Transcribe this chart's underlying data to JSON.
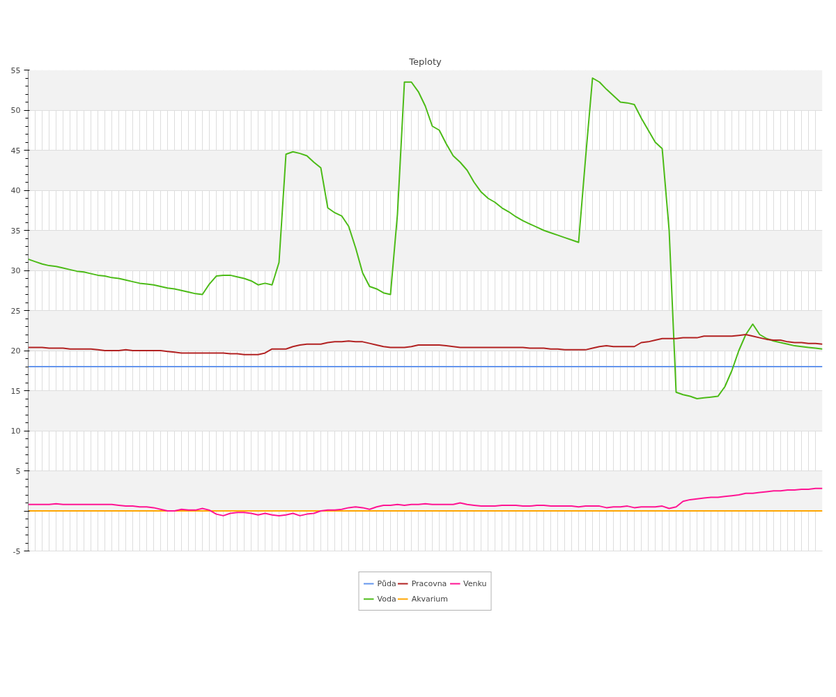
{
  "chart_data": {
    "type": "line",
    "title": "Teploty",
    "categories": [
      null,
      null,
      null,
      null,
      null,
      null,
      null,
      null,
      null,
      null,
      null,
      null,
      null,
      null,
      null,
      null,
      null,
      null,
      null,
      null,
      null,
      null,
      null,
      null,
      null,
      null,
      null,
      null,
      null,
      null,
      null,
      null,
      null,
      null,
      null,
      null,
      null,
      null,
      null,
      null,
      null,
      null,
      null,
      null,
      null,
      null,
      null,
      null,
      null,
      null,
      null,
      null,
      null,
      null,
      null,
      null,
      null,
      null,
      null,
      null,
      null,
      null,
      null,
      null,
      null,
      null,
      null,
      null,
      null,
      null,
      null,
      null,
      null,
      null,
      null,
      null,
      null,
      null,
      null,
      null,
      null,
      null,
      null,
      null,
      null,
      null,
      null,
      null,
      null,
      null,
      null,
      null,
      null,
      null,
      null,
      null,
      null,
      null,
      null,
      null,
      null,
      null,
      null,
      null,
      null,
      null,
      null,
      null,
      null,
      null,
      null,
      null,
      null,
      null,
      null
    ],
    "series": [
      {
        "name": "Půda",
        "color": "#6495ed",
        "values": [
          18,
          18,
          18,
          18,
          18,
          18,
          18,
          18,
          18,
          18,
          18,
          18,
          18,
          18,
          18,
          18,
          18,
          18,
          18,
          18,
          18,
          18,
          18,
          18,
          18,
          18,
          18,
          18,
          18,
          18,
          18,
          18,
          18,
          18,
          18,
          18,
          18,
          18,
          18,
          18,
          18,
          18,
          18,
          18,
          18,
          18,
          18,
          18,
          18,
          18,
          18,
          18,
          18,
          18,
          18,
          18,
          18,
          18,
          18,
          18,
          18,
          18,
          18,
          18,
          18,
          18,
          18,
          18,
          18,
          18,
          18,
          18,
          18,
          18,
          18,
          18,
          18,
          18,
          18,
          18,
          18,
          18,
          18,
          18,
          18,
          18,
          18,
          18,
          18,
          18,
          18,
          18,
          18,
          18,
          18,
          18,
          18,
          18,
          18,
          18,
          18,
          18,
          18,
          18,
          18,
          18,
          18,
          18,
          18,
          18,
          18,
          18,
          18,
          18,
          18
        ]
      },
      {
        "name": "Voda",
        "color": "#4cbb17",
        "values": [
          31.4,
          31.1,
          30.8,
          30.6,
          30.5,
          30.3,
          30.1,
          29.9,
          29.8,
          29.6,
          29.4,
          29.3,
          29.1,
          29.0,
          28.8,
          28.6,
          28.4,
          28.3,
          28.2,
          28.0,
          27.8,
          27.7,
          27.5,
          27.3,
          27.1,
          27.0,
          28.3,
          29.3,
          29.4,
          29.4,
          29.2,
          29.0,
          28.7,
          28.2,
          28.4,
          28.2,
          31.0,
          44.5,
          44.8,
          44.6,
          44.3,
          43.5,
          42.8,
          37.8,
          37.2,
          36.8,
          35.5,
          32.8,
          29.7,
          28.0,
          27.7,
          27.2,
          27.0,
          37.0,
          53.5,
          53.5,
          52.3,
          50.5,
          48.0,
          47.5,
          45.8,
          44.3,
          43.5,
          42.5,
          41.0,
          39.8,
          39.0,
          38.5,
          37.8,
          37.3,
          36.7,
          36.2,
          35.8,
          35.4,
          35.0,
          34.7,
          34.4,
          34.1,
          33.8,
          33.5,
          44.0,
          54.0,
          53.5,
          52.6,
          51.8,
          51.0,
          50.9,
          50.7,
          49.0,
          47.5,
          46.0,
          45.2,
          35.0,
          14.8,
          14.5,
          14.3,
          14.0,
          14.1,
          14.2,
          14.3,
          15.5,
          17.5,
          20.0,
          22.0,
          23.3,
          22.0,
          21.5,
          21.2,
          21.0,
          20.8,
          20.6,
          20.5,
          20.4,
          20.3,
          20.2
        ]
      },
      {
        "name": "Pracovna",
        "color": "#b22222",
        "values": [
          20.4,
          20.4,
          20.4,
          20.3,
          20.3,
          20.3,
          20.2,
          20.2,
          20.2,
          20.2,
          20.1,
          20.0,
          20.0,
          20.0,
          20.1,
          20.0,
          20.0,
          20.0,
          20.0,
          20.0,
          19.9,
          19.8,
          19.7,
          19.7,
          19.7,
          19.7,
          19.7,
          19.7,
          19.7,
          19.6,
          19.6,
          19.5,
          19.5,
          19.5,
          19.7,
          20.2,
          20.2,
          20.2,
          20.5,
          20.7,
          20.8,
          20.8,
          20.8,
          21.0,
          21.1,
          21.1,
          21.2,
          21.1,
          21.1,
          20.9,
          20.7,
          20.5,
          20.4,
          20.4,
          20.4,
          20.5,
          20.7,
          20.7,
          20.7,
          20.7,
          20.6,
          20.5,
          20.4,
          20.4,
          20.4,
          20.4,
          20.4,
          20.4,
          20.4,
          20.4,
          20.4,
          20.4,
          20.3,
          20.3,
          20.3,
          20.2,
          20.2,
          20.1,
          20.1,
          20.1,
          20.1,
          20.3,
          20.5,
          20.6,
          20.5,
          20.5,
          20.5,
          20.5,
          21.0,
          21.1,
          21.3,
          21.5,
          21.5,
          21.5,
          21.6,
          21.6,
          21.6,
          21.8,
          21.8,
          21.8,
          21.8,
          21.8,
          21.9,
          22.0,
          21.8,
          21.6,
          21.4,
          21.3,
          21.3,
          21.1,
          21.0,
          21.0,
          20.9,
          20.9,
          20.8
        ]
      },
      {
        "name": "Akvarium",
        "color": "#ffa500",
        "values": [
          0,
          0,
          0,
          0,
          0,
          0,
          0,
          0,
          0,
          0,
          0,
          0,
          0,
          0,
          0,
          0,
          0,
          0,
          0,
          0,
          0,
          0,
          0,
          0,
          0,
          0,
          0,
          0,
          0,
          0,
          0,
          0,
          0,
          0,
          0,
          0,
          0,
          0,
          0,
          0,
          0,
          0,
          0,
          0,
          0,
          0,
          0,
          0,
          0,
          0,
          0,
          0,
          0,
          0,
          0,
          0,
          0,
          0,
          0,
          0,
          0,
          0,
          0,
          0,
          0,
          0,
          0,
          0,
          0,
          0,
          0,
          0,
          0,
          0,
          0,
          0,
          0,
          0,
          0,
          0,
          0,
          0,
          0,
          0,
          0,
          0,
          0,
          0,
          0,
          0,
          0,
          0,
          0,
          0,
          0,
          0,
          0,
          0,
          0,
          0,
          0,
          0,
          0,
          0,
          0,
          0,
          0,
          0,
          0,
          0,
          0,
          0,
          0,
          0,
          0
        ]
      },
      {
        "name": "Venku",
        "color": "#ff1493",
        "values": [
          0.8,
          0.8,
          0.8,
          0.8,
          0.9,
          0.8,
          0.8,
          0.8,
          0.8,
          0.8,
          0.8,
          0.8,
          0.8,
          0.7,
          0.6,
          0.6,
          0.5,
          0.5,
          0.4,
          0.2,
          0.0,
          0.0,
          0.2,
          0.1,
          0.1,
          0.3,
          0.1,
          -0.4,
          -0.6,
          -0.3,
          -0.2,
          -0.2,
          -0.3,
          -0.5,
          -0.3,
          -0.5,
          -0.6,
          -0.5,
          -0.3,
          -0.6,
          -0.4,
          -0.3,
          0.0,
          0.1,
          0.1,
          0.2,
          0.4,
          0.5,
          0.4,
          0.2,
          0.5,
          0.7,
          0.7,
          0.8,
          0.7,
          0.8,
          0.8,
          0.9,
          0.8,
          0.8,
          0.8,
          0.8,
          1.0,
          0.8,
          0.7,
          0.6,
          0.6,
          0.6,
          0.7,
          0.7,
          0.7,
          0.6,
          0.6,
          0.7,
          0.7,
          0.6,
          0.6,
          0.6,
          0.6,
          0.5,
          0.6,
          0.6,
          0.6,
          0.4,
          0.5,
          0.5,
          0.6,
          0.4,
          0.5,
          0.5,
          0.5,
          0.6,
          0.3,
          0.5,
          1.2,
          1.4,
          1.5,
          1.6,
          1.7,
          1.7,
          1.8,
          1.9,
          2.0,
          2.2,
          2.2,
          2.3,
          2.4,
          2.5,
          2.5,
          2.6,
          2.6,
          2.7,
          2.7,
          2.8,
          2.8
        ]
      }
    ],
    "ylim": [
      -5,
      55
    ],
    "yticks": [
      -5,
      {
        "value": 0,
        "label": null
      },
      5,
      10,
      15,
      20,
      25,
      30,
      35,
      40,
      45,
      50,
      55
    ],
    "grid": true,
    "legend": "bottom",
    "marker": "none",
    "line_style": "solid"
  }
}
